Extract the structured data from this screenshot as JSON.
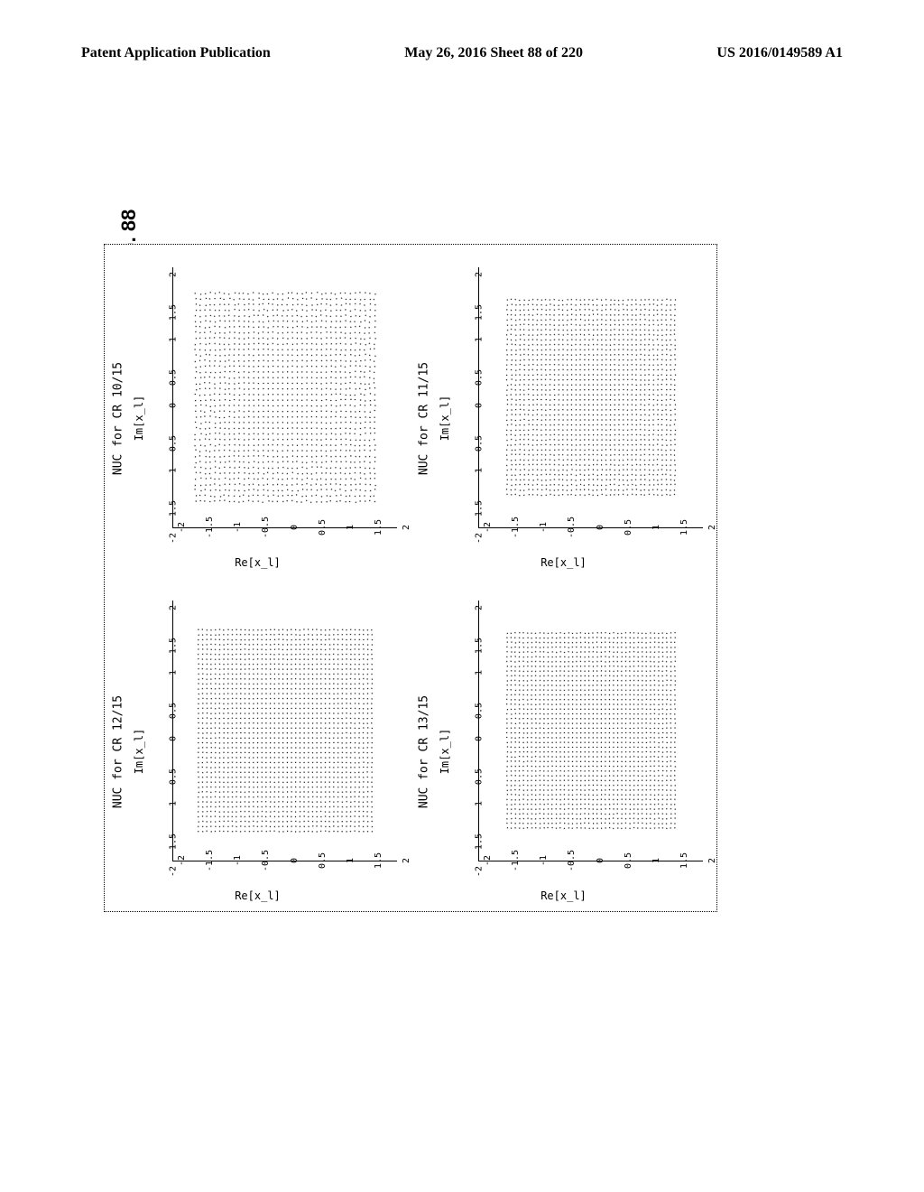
{
  "header": {
    "left": "Patent Application Publication",
    "center": "May 26, 2016  Sheet 88 of 220",
    "right": "US 2016/0149589 A1"
  },
  "figure_label": "FIG. 88",
  "plots": [
    {
      "title": "NUC for CR 10/15",
      "xlabel": "Re[x_l]",
      "ylabel": "Im[x_l]",
      "xlim": [
        -2,
        2
      ],
      "ylim": [
        -2,
        2
      ],
      "xticks": [
        -2,
        -1.5,
        -1,
        -0.5,
        0,
        0.5,
        1,
        1.5,
        2
      ],
      "yticks": [
        -2,
        -1.5,
        -1,
        -0.5,
        0,
        0.5,
        1,
        1.5,
        2
      ],
      "grid_extent": 1.6,
      "density": 38,
      "point_color": "#000000",
      "bg_color": "#ffffff",
      "irregularity": 0.35
    },
    {
      "title": "NUC for CR 11/15",
      "xlabel": "Re[x_l]",
      "ylabel": "Im[x_l]",
      "xlim": [
        -2,
        2
      ],
      "ylim": [
        -2,
        2
      ],
      "xticks": [
        -2,
        -1.5,
        -1,
        -0.5,
        0,
        0.5,
        1,
        1.5,
        2
      ],
      "yticks": [
        -2,
        -1.5,
        -1,
        -0.5,
        0,
        0.5,
        1,
        1.5,
        2
      ],
      "grid_extent": 1.5,
      "density": 40,
      "point_color": "#000000",
      "bg_color": "#ffffff",
      "irregularity": 0.25
    },
    {
      "title": "NUC for CR 12/15",
      "xlabel": "Re[x_l]",
      "ylabel": "Im[x_l]",
      "xlim": [
        -2,
        2
      ],
      "ylim": [
        -2,
        2
      ],
      "xticks": [
        -2,
        -1.5,
        -1,
        -0.5,
        0,
        0.5,
        1,
        1.5,
        2
      ],
      "yticks": [
        -2,
        -1.5,
        -1,
        -0.5,
        0,
        0.5,
        1,
        1.5,
        2
      ],
      "grid_extent": 1.55,
      "density": 42,
      "point_color": "#000000",
      "bg_color": "#ffffff",
      "irregularity": 0.15
    },
    {
      "title": "NUC for CR 13/15",
      "xlabel": "Re[x_l]",
      "ylabel": "Im[x_l]",
      "xlim": [
        -2,
        2
      ],
      "ylim": [
        -2,
        2
      ],
      "xticks": [
        -2,
        -1.5,
        -1,
        -0.5,
        0,
        0.5,
        1,
        1.5,
        2
      ],
      "yticks": [
        -2,
        -1.5,
        -1,
        -0.5,
        0,
        0.5,
        1,
        1.5,
        2
      ],
      "grid_extent": 1.5,
      "density": 42,
      "point_color": "#000000",
      "bg_color": "#ffffff",
      "irregularity": 0.18
    }
  ]
}
